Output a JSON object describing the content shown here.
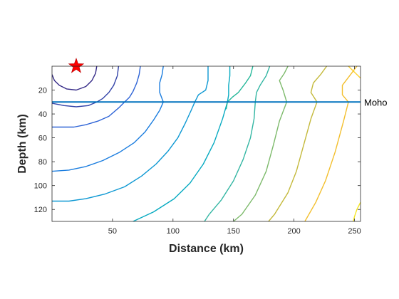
{
  "chart_data": {
    "type": "contour",
    "xlabel": "Distance (km)",
    "ylabel": "Depth (km)",
    "xlim": [
      0,
      255
    ],
    "ylim": [
      0,
      130
    ],
    "y_reversed": true,
    "xticks": [
      50,
      100,
      150,
      200,
      250
    ],
    "yticks": [
      20,
      40,
      60,
      80,
      100,
      120
    ],
    "grid": false,
    "colormap": "parula",
    "source": {
      "x": 20,
      "y": 0,
      "marker": "star",
      "color": "#ff0000"
    },
    "moho": {
      "label": "Moho",
      "depth": 30,
      "color": "#0072bd"
    },
    "contours": [
      {
        "color": "#352a87",
        "points": [
          [
            37,
            0
          ],
          [
            36,
            6
          ],
          [
            33,
            12
          ],
          [
            28,
            17
          ],
          [
            20,
            20
          ],
          [
            12,
            19
          ],
          [
            6,
            16
          ],
          [
            2,
            12
          ],
          [
            0,
            7
          ]
        ]
      },
      {
        "color": "#3343a8",
        "points": [
          [
            55,
            0
          ],
          [
            54,
            8
          ],
          [
            51,
            16
          ],
          [
            47,
            22
          ],
          [
            42,
            27
          ],
          [
            37,
            30
          ],
          [
            30,
            33
          ],
          [
            20,
            34
          ],
          [
            10,
            33
          ],
          [
            0,
            31
          ]
        ]
      },
      {
        "color": "#2d63d6",
        "points": [
          [
            73,
            0
          ],
          [
            72,
            7
          ],
          [
            70,
            14
          ],
          [
            67,
            21
          ],
          [
            64,
            26
          ],
          [
            60,
            30
          ],
          [
            55,
            35
          ],
          [
            47,
            42
          ],
          [
            38,
            46
          ],
          [
            28,
            49
          ],
          [
            18,
            51
          ],
          [
            8,
            51
          ],
          [
            0,
            51
          ]
        ]
      },
      {
        "color": "#1b7ddf",
        "points": [
          [
            92,
            0
          ],
          [
            91,
            7
          ],
          [
            89,
            14
          ],
          [
            89,
            22
          ],
          [
            92,
            30
          ],
          [
            89,
            37
          ],
          [
            84,
            45
          ],
          [
            77,
            55
          ],
          [
            68,
            64
          ],
          [
            56,
            72
          ],
          [
            42,
            79
          ],
          [
            28,
            84
          ],
          [
            14,
            87
          ],
          [
            0,
            88
          ]
        ]
      },
      {
        "color": "#0d98d3",
        "points": [
          [
            129,
            0
          ],
          [
            129,
            12
          ],
          [
            127,
            20
          ],
          [
            121,
            24
          ],
          [
            118,
            30
          ],
          [
            115,
            37
          ],
          [
            110,
            48
          ],
          [
            104,
            60
          ],
          [
            96,
            71
          ],
          [
            86,
            82
          ],
          [
            74,
            92
          ],
          [
            60,
            101
          ],
          [
            44,
            107
          ],
          [
            28,
            111
          ],
          [
            14,
            113
          ],
          [
            0,
            113
          ]
        ]
      },
      {
        "color": "#06aac1",
        "points": [
          [
            147,
            0
          ],
          [
            147,
            8
          ],
          [
            146,
            16
          ],
          [
            146,
            24
          ],
          [
            145,
            30
          ],
          [
            141,
            44
          ],
          [
            134,
            64
          ],
          [
            125,
            82
          ],
          [
            114,
            98
          ],
          [
            101,
            111
          ],
          [
            84,
            122
          ],
          [
            67,
            130
          ]
        ]
      },
      {
        "color": "#24b799",
        "points": [
          [
            166,
            0
          ],
          [
            164,
            8
          ],
          [
            160,
            14
          ],
          [
            154,
            22
          ],
          [
            149,
            26
          ],
          [
            145,
            30
          ]
        ]
      },
      {
        "color": "#24b799",
        "points": [
          [
            145,
            30
          ],
          [
            144,
            36
          ]
        ]
      },
      {
        "color": "#33b6a3",
        "points": [
          [
            180,
            0
          ],
          [
            177,
            8
          ],
          [
            172,
            16
          ],
          [
            169,
            22
          ],
          [
            168,
            30
          ],
          [
            167,
            44
          ],
          [
            164,
            60
          ],
          [
            158,
            78
          ],
          [
            150,
            96
          ],
          [
            140,
            112
          ],
          [
            130,
            124
          ],
          [
            126,
            130
          ]
        ]
      },
      {
        "color": "#7dba6b",
        "points": [
          [
            195,
            0
          ],
          [
            192,
            6
          ],
          [
            188,
            12
          ],
          [
            191,
            20
          ],
          [
            194,
            30
          ],
          [
            188,
            46
          ],
          [
            183,
            66
          ],
          [
            177,
            88
          ],
          [
            168,
            108
          ],
          [
            157,
            124
          ],
          [
            150,
            130
          ]
        ]
      },
      {
        "color": "#c4b93b",
        "points": [
          [
            227,
            0
          ],
          [
            222,
            7
          ],
          [
            216,
            14
          ],
          [
            214,
            22
          ],
          [
            219,
            30
          ],
          [
            214,
            44
          ],
          [
            208,
            66
          ],
          [
            202,
            88
          ],
          [
            195,
            106
          ],
          [
            184,
            124
          ],
          [
            179,
            130
          ]
        ]
      },
      {
        "color": "#f3bf2d",
        "points": [
          [
            252,
            0
          ],
          [
            246,
            8
          ],
          [
            240,
            16
          ],
          [
            240,
            24
          ],
          [
            245,
            30
          ],
          [
            241,
            46
          ],
          [
            234,
            72
          ],
          [
            226,
            96
          ],
          [
            218,
            114
          ],
          [
            209,
            130
          ]
        ]
      },
      {
        "color": "#fcd22f",
        "points": [
          [
            245,
            0
          ],
          [
            249,
            4
          ],
          [
            253,
            8
          ],
          [
            255,
            10
          ]
        ]
      },
      {
        "color": "#f5e51f",
        "points": [
          [
            255,
            114
          ],
          [
            252,
            120
          ],
          [
            250,
            126
          ],
          [
            249,
            130
          ]
        ]
      }
    ]
  }
}
